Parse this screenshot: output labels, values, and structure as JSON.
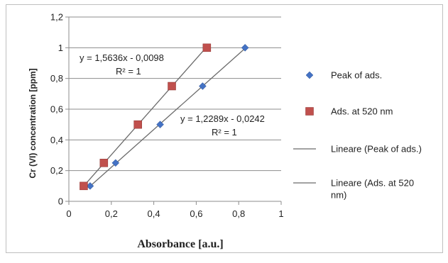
{
  "chart_data": {
    "type": "scatter",
    "xlabel": "Absorbance [a.u.]",
    "ylabel": "Cr (VI) concentration [ppm]",
    "xlim": [
      0,
      1
    ],
    "ylim": [
      0,
      1.2
    ],
    "x_ticks": [
      "0",
      "0,2",
      "0,4",
      "0,6",
      "0,8",
      "1"
    ],
    "y_ticks": [
      "0",
      "0,2",
      "0,4",
      "0,6",
      "0,8",
      "1",
      "1,2"
    ],
    "grid": "horizontal",
    "legend_position": "right",
    "series": [
      {
        "name": "Peak of ads.",
        "marker": "diamond",
        "color": "#4472C4",
        "points": [
          [
            0.1,
            0.1
          ],
          [
            0.22,
            0.25
          ],
          [
            0.43,
            0.5
          ],
          [
            0.63,
            0.75
          ],
          [
            0.83,
            1.0
          ]
        ]
      },
      {
        "name": "Ads. at 520 nm",
        "marker": "square",
        "color": "#C0504D",
        "points": [
          [
            0.07,
            0.1
          ],
          [
            0.165,
            0.25
          ],
          [
            0.325,
            0.5
          ],
          [
            0.485,
            0.75
          ],
          [
            0.65,
            1.0
          ]
        ]
      }
    ],
    "trendlines": [
      {
        "name": "Lineare (Peak of ads.)",
        "slope": 1.2289,
        "intercept": -0.0242,
        "x_range": [
          0.1,
          0.83
        ],
        "color": "#6b6b6b",
        "equation": "y = 1,2289x - 0,0242",
        "r2": "R² = 1"
      },
      {
        "name": "Lineare (Ads. at 520 nm)",
        "slope": 1.5636,
        "intercept": -0.0098,
        "x_range": [
          0.07,
          0.65
        ],
        "color": "#6b6b6b",
        "equation": "y = 1,5636x - 0,0098",
        "r2": "R² = 1"
      }
    ],
    "legend": [
      {
        "label": "Peak of ads.",
        "kind": "diamond",
        "color": "#4472C4"
      },
      {
        "label": "Ads. at 520 nm",
        "kind": "square",
        "color": "#C0504D"
      },
      {
        "label": "Lineare (Peak of ads.)",
        "kind": "line",
        "color": "#6b6b6b"
      },
      {
        "label": "Lineare (Ads. at 520\nnm)",
        "kind": "line",
        "color": "#6b6b6b"
      }
    ]
  }
}
